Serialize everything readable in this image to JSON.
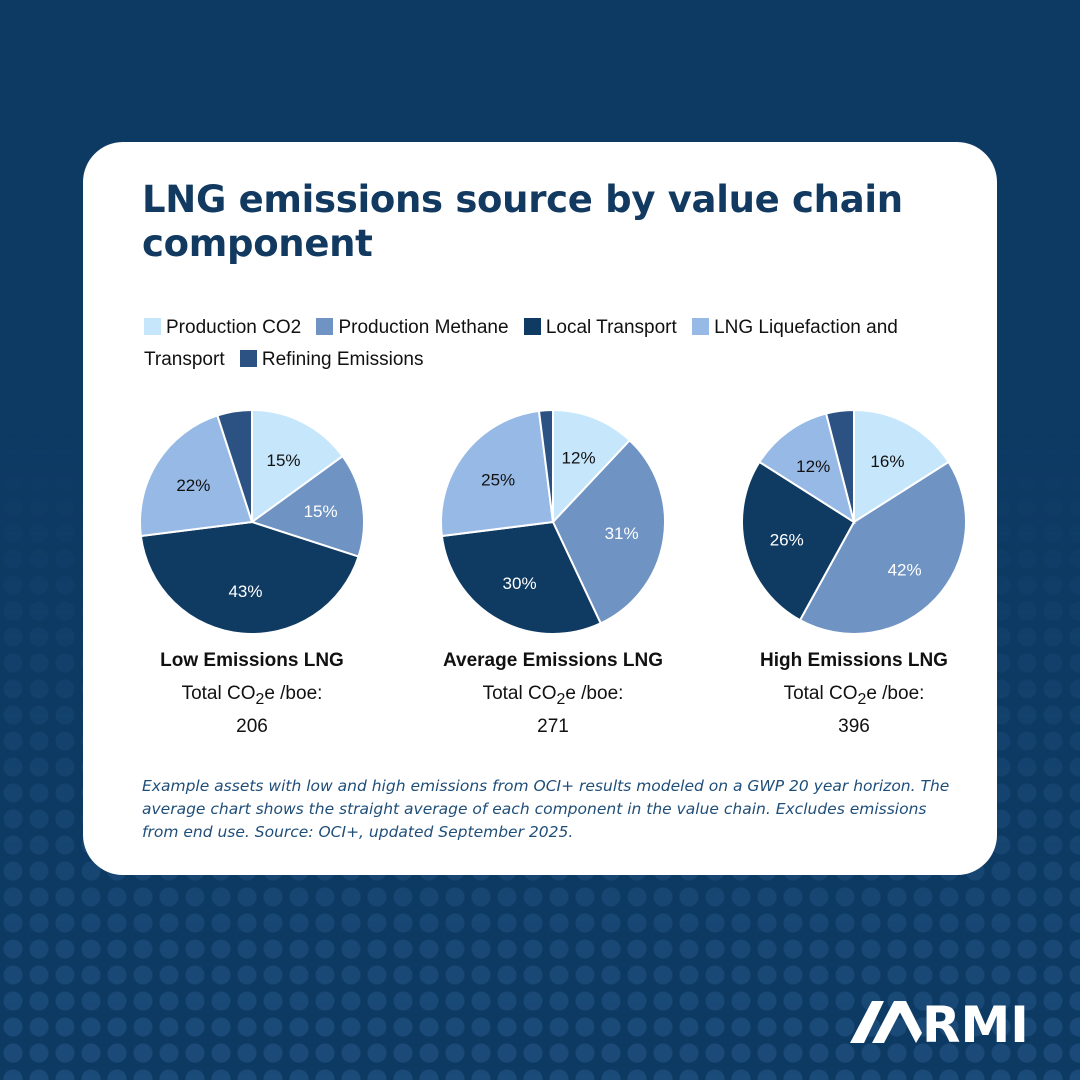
{
  "header": {
    "title": "LNG emissions source by value chain component"
  },
  "legend": [
    {
      "label": "Production CO2",
      "color": "#c6e6fb"
    },
    {
      "label": "Production Methane",
      "color": "#6f93c2"
    },
    {
      "label": "Local Transport",
      "color": "#0f3a62"
    },
    {
      "label": "LNG Liquefaction and Transport",
      "color": "#97b9e6"
    },
    {
      "label": "Refining Emissions",
      "color": "#2c5283"
    }
  ],
  "chart_data": [
    {
      "type": "pie",
      "title": "Low Emissions LNG",
      "subtitle_prefix": "Total CO",
      "subscript": "2",
      "subtitle_suffix": "e /boe:",
      "total": "206",
      "slices": [
        {
          "name": "Production CO2",
          "value": 15,
          "label": "15%"
        },
        {
          "name": "Production Methane",
          "value": 15,
          "label": "15%"
        },
        {
          "name": "Local Transport",
          "value": 43,
          "label": "43%"
        },
        {
          "name": "LNG Liquefaction and Transport",
          "value": 22,
          "label": "22%"
        },
        {
          "name": "Refining Emissions",
          "value": 5,
          "label": ""
        }
      ]
    },
    {
      "type": "pie",
      "title": "Average Emissions LNG",
      "subtitle_prefix": "Total CO",
      "subscript": "2",
      "subtitle_suffix": "e /boe:",
      "total": "271",
      "slices": [
        {
          "name": "Production CO2",
          "value": 12,
          "label": "12%"
        },
        {
          "name": "Production Methane",
          "value": 31,
          "label": "31%"
        },
        {
          "name": "Local Transport",
          "value": 30,
          "label": "30%"
        },
        {
          "name": "LNG Liquefaction and Transport",
          "value": 25,
          "label": "25%"
        },
        {
          "name": "Refining Emissions",
          "value": 2,
          "label": ""
        }
      ]
    },
    {
      "type": "pie",
      "title": "High Emissions LNG",
      "subtitle_prefix": "Total CO",
      "subscript": "2",
      "subtitle_suffix": "e /boe:",
      "total": "396",
      "slices": [
        {
          "name": "Production CO2",
          "value": 16,
          "label": "16%"
        },
        {
          "name": "Production Methane",
          "value": 42,
          "label": "42%"
        },
        {
          "name": "Local Transport",
          "value": 26,
          "label": "26%"
        },
        {
          "name": "LNG Liquefaction and Transport",
          "value": 12,
          "label": "12%"
        },
        {
          "name": "Refining Emissions",
          "value": 4,
          "label": ""
        }
      ]
    }
  ],
  "footnote": "Example assets with low and high emissions from OCI+ results modeled on a GWP 20 year horizon. The average chart shows the straight average of each component in the value chain. Excludes emissions from end use. Source: OCI+, updated September 2025.",
  "brand": {
    "name": "RMI",
    "icon": "rmi-mountain-icon"
  }
}
